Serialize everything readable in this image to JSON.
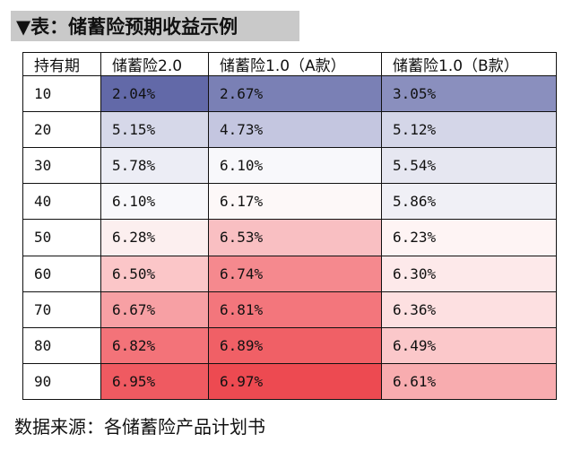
{
  "title": "▼表：储蓄险预期收益示例",
  "table": {
    "headers": [
      "持有期",
      "储蓄险2.0",
      "储蓄险1.0（A款）",
      "储蓄险1.0（B款）"
    ],
    "rows": [
      {
        "period": "10",
        "v20": "2.04%",
        "v10a": "2.67%",
        "v10b": "3.05%"
      },
      {
        "period": "20",
        "v20": "5.15%",
        "v10a": "4.73%",
        "v10b": "5.12%"
      },
      {
        "period": "30",
        "v20": "5.78%",
        "v10a": "6.10%",
        "v10b": "5.54%"
      },
      {
        "period": "40",
        "v20": "6.10%",
        "v10a": "6.17%",
        "v10b": "5.86%"
      },
      {
        "period": "50",
        "v20": "6.28%",
        "v10a": "6.53%",
        "v10b": "6.23%"
      },
      {
        "period": "60",
        "v20": "6.50%",
        "v10a": "6.74%",
        "v10b": "6.30%"
      },
      {
        "period": "70",
        "v20": "6.67%",
        "v10a": "6.81%",
        "v10b": "6.36%"
      },
      {
        "period": "80",
        "v20": "6.82%",
        "v10a": "6.89%",
        "v10b": "6.49%"
      },
      {
        "period": "90",
        "v20": "6.95%",
        "v10a": "6.97%",
        "v10b": "6.61%"
      }
    ]
  },
  "colors": {
    "2.04%": "#6269a8",
    "2.67%": "#7a80b5",
    "3.05%": "#8a8fbe",
    "5.15%": "#d6d8e9",
    "4.73%": "#c4c6e0",
    "5.12%": "#d4d6e8",
    "5.78%": "#ecedf5",
    "6.10%": "#f8f8fb",
    "5.54%": "#e6e7f1",
    "6.17%": "#fdf8f8",
    "5.86%": "#f0f0f6",
    "6.28%": "#fcefef",
    "6.53%": "#f9bfc2",
    "6.23%": "#fef4f4",
    "6.50%": "#fbc6c8",
    "6.74%": "#f5898e",
    "6.30%": "#fde9ea",
    "6.67%": "#f7a0a4",
    "6.81%": "#f3767c",
    "6.36%": "#fde0e1",
    "6.82%": "#f37379",
    "6.89%": "#f06066",
    "6.49%": "#fbc8ca",
    "6.95%": "#ef5a61",
    "6.97%": "#ed4a51",
    "6.61%": "#f8acaf"
  },
  "source": "数据来源：各储蓄险产品计划书"
}
